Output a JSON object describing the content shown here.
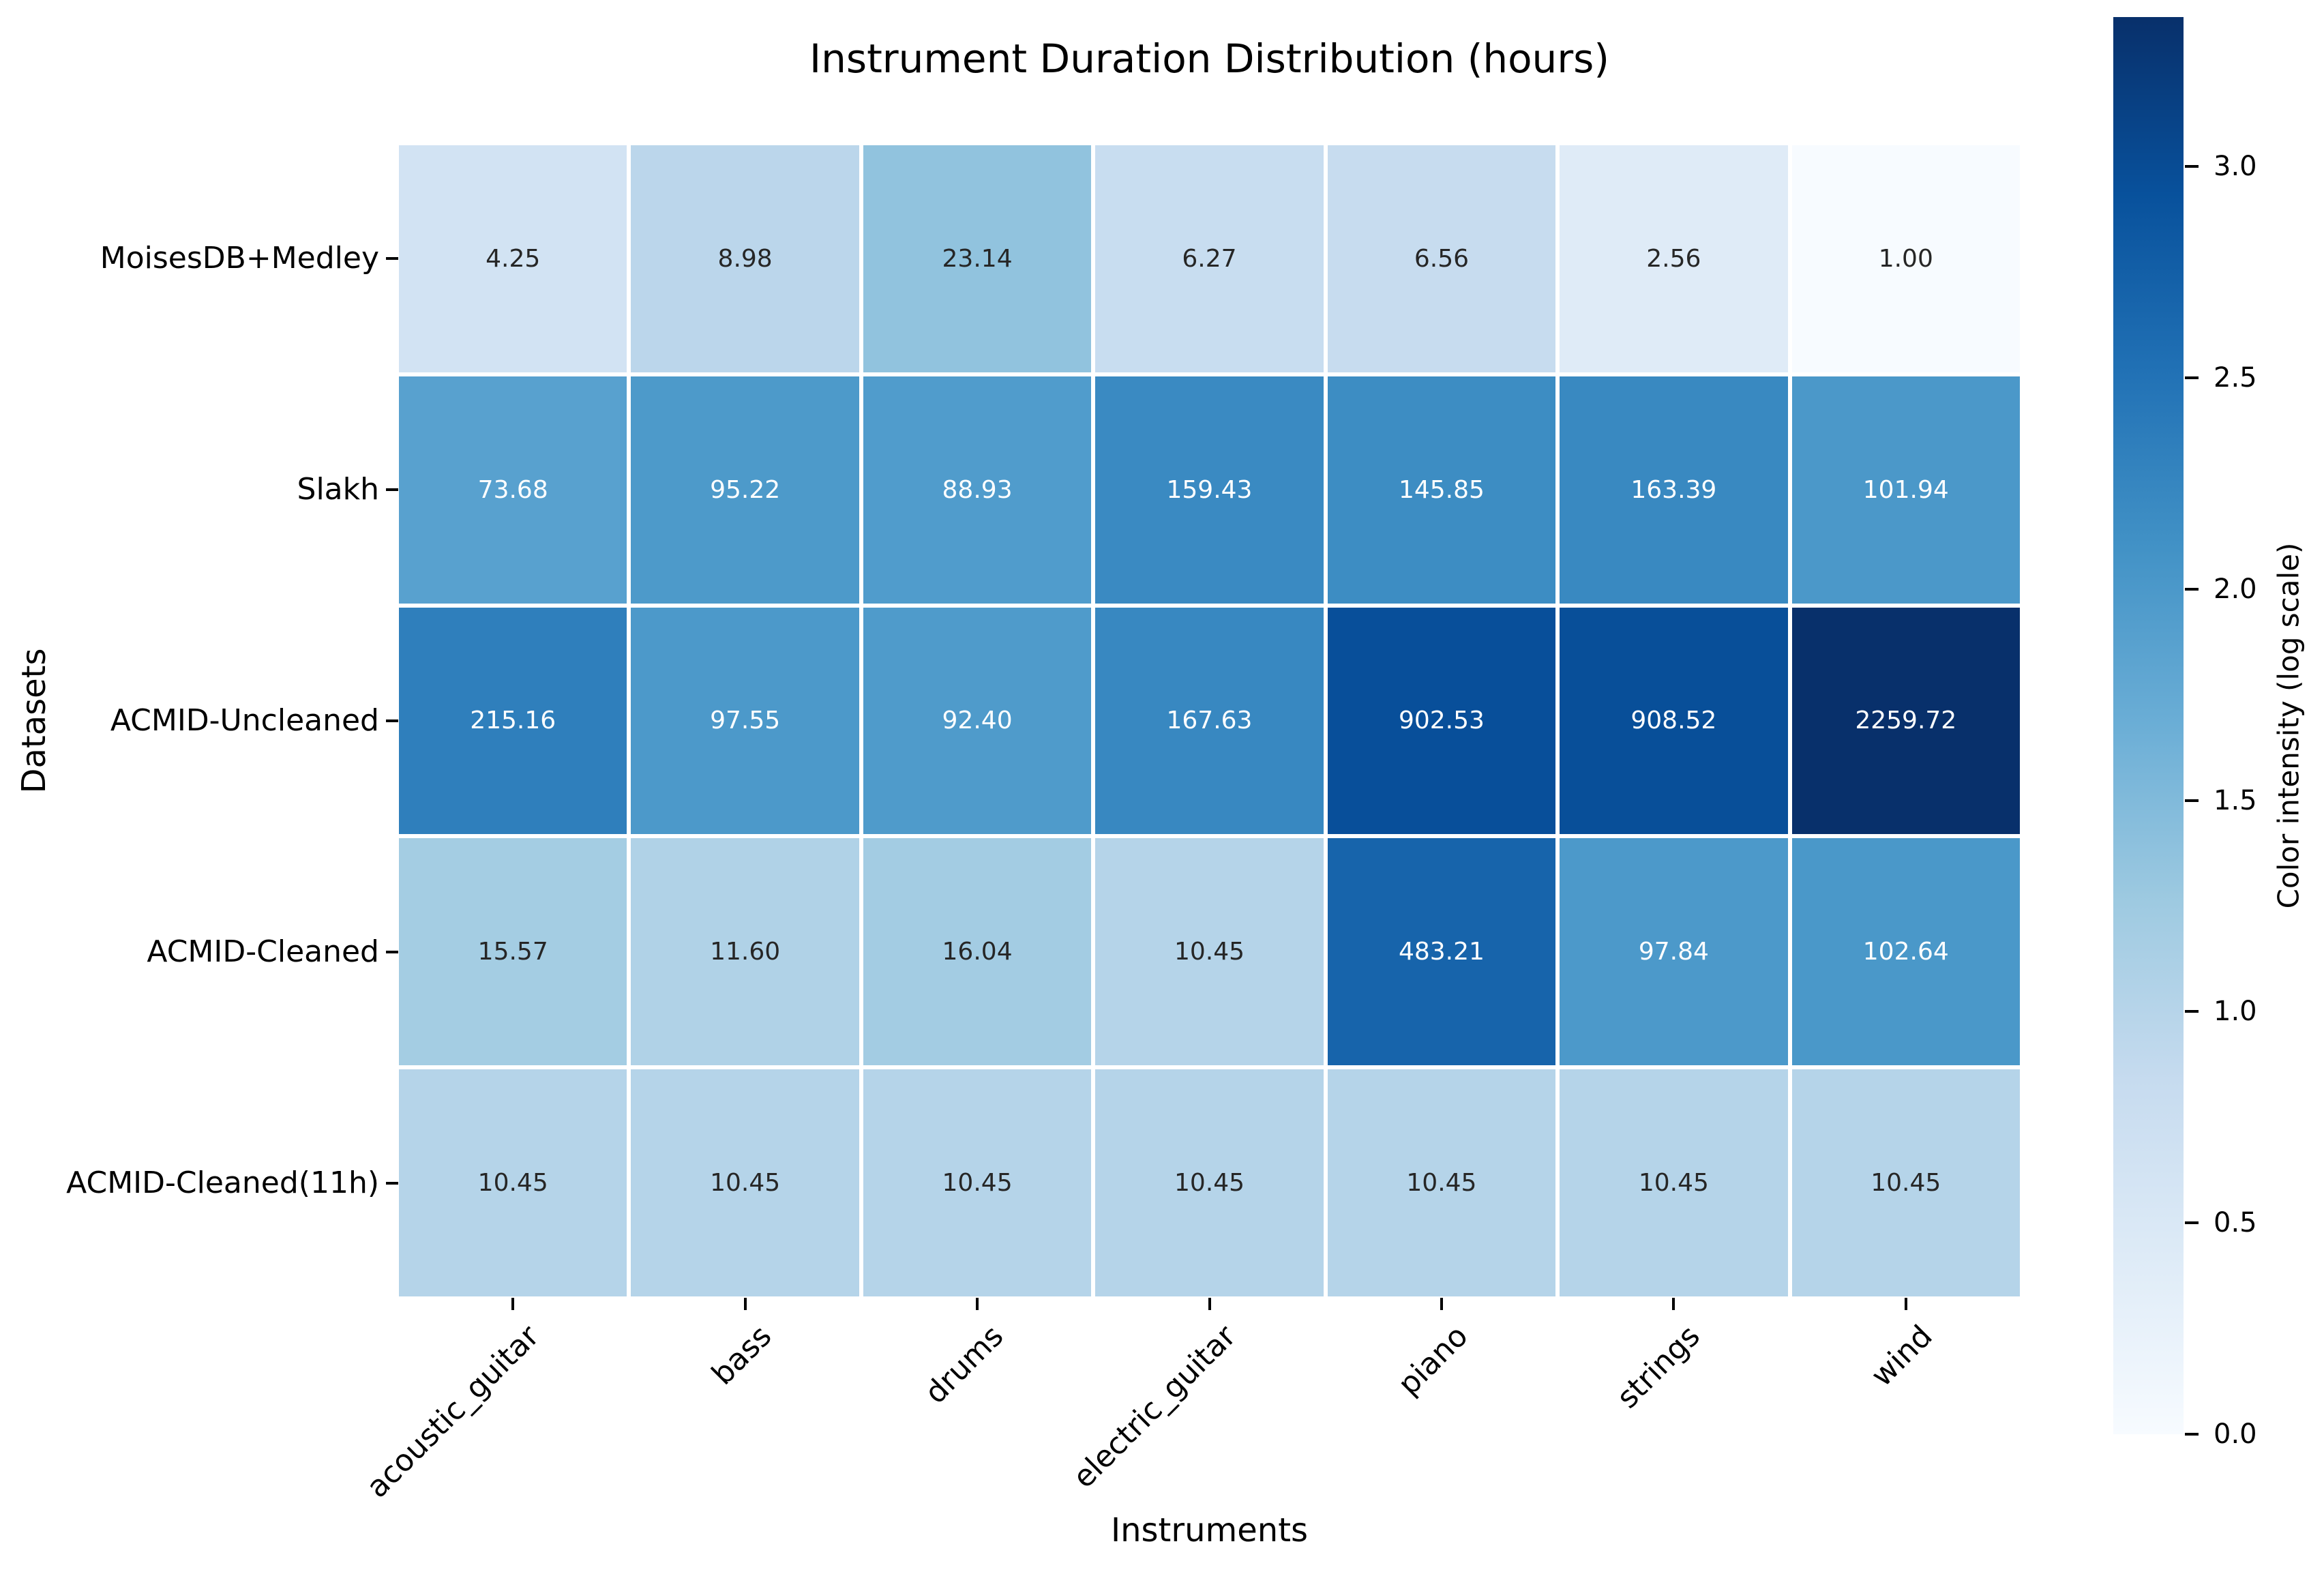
{
  "chart_data": {
    "type": "heatmap",
    "title": "Instrument Duration Distribution (hours)",
    "xlabel": "Instruments",
    "ylabel": "Datasets",
    "columns": [
      "acoustic_guitar",
      "bass",
      "drums",
      "electric_guitar",
      "piano",
      "strings",
      "wind"
    ],
    "rows": [
      "MoisesDB+Medley",
      "Slakh",
      "ACMID-Uncleaned",
      "ACMID-Cleaned",
      "ACMID-Cleaned(11h)"
    ],
    "values": [
      [
        4.25,
        8.98,
        23.14,
        6.27,
        6.56,
        2.56,
        1.0
      ],
      [
        73.68,
        95.22,
        88.93,
        159.43,
        145.85,
        163.39,
        101.94
      ],
      [
        215.16,
        97.55,
        92.4,
        167.63,
        902.53,
        908.52,
        2259.72
      ],
      [
        15.57,
        11.6,
        16.04,
        10.45,
        483.21,
        97.84,
        102.64
      ],
      [
        10.45,
        10.45,
        10.45,
        10.45,
        10.45,
        10.45,
        10.45
      ]
    ],
    "value_decimals": 2,
    "color_scale": "log10",
    "colormap": "Blues",
    "colormap_stops": [
      "#f7fbff",
      "#deebf7",
      "#c6dbef",
      "#9ecae1",
      "#6baed6",
      "#4292c6",
      "#2171b5",
      "#08519c",
      "#08306b"
    ],
    "annotation_dark_text_color": "#262626",
    "annotation_light_text_color": "#ffffff",
    "grid_line_color": "#ffffff",
    "legend_position": "right",
    "colorbar": {
      "label": "Color intensity (log scale)",
      "ticks": [
        0.0,
        0.5,
        1.0,
        1.5,
        2.0,
        2.5,
        3.0
      ],
      "tick_decimals": 1
    }
  }
}
